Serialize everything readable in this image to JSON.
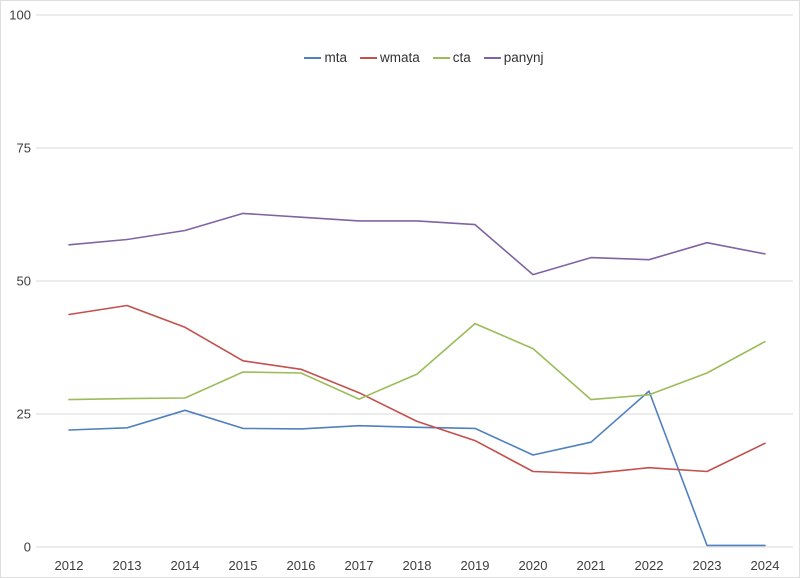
{
  "chart_data": {
    "type": "line",
    "title": "",
    "xlabel": "",
    "ylabel": "",
    "x": [
      2012,
      2013,
      2014,
      2015,
      2016,
      2017,
      2018,
      2019,
      2020,
      2021,
      2022,
      2023,
      2024
    ],
    "series": [
      {
        "name": "mta",
        "color": "#5080BE",
        "values": [
          22.0,
          22.4,
          25.7,
          22.3,
          22.2,
          22.8,
          22.5,
          22.3,
          17.3,
          19.7,
          29.3,
          0.3,
          0.3
        ]
      },
      {
        "name": "wmata",
        "color": "#C3504B",
        "values": [
          43.7,
          45.4,
          41.3,
          35.0,
          33.4,
          29.0,
          23.6,
          20.0,
          14.2,
          13.8,
          14.9,
          14.2,
          19.5
        ]
      },
      {
        "name": "cta",
        "color": "#9CBB59",
        "values": [
          27.7,
          27.9,
          28.0,
          32.9,
          32.7,
          27.8,
          32.5,
          42.0,
          37.3,
          27.7,
          28.6,
          32.7,
          38.6
        ]
      },
      {
        "name": "panynj",
        "color": "#8064A2",
        "values": [
          56.8,
          57.8,
          59.5,
          62.7,
          62.0,
          61.3,
          61.3,
          60.6,
          51.2,
          54.4,
          54.0,
          57.2,
          55.1
        ]
      }
    ],
    "ylim": [
      0,
      100
    ],
    "yticks": [
      0,
      25,
      50,
      75,
      100
    ],
    "grid": "horizontal",
    "legend_position": "top-center",
    "colors": {
      "gridline": "#d9d9d9",
      "tick_text": "#3d3d3d",
      "background": "#ffffff"
    }
  }
}
